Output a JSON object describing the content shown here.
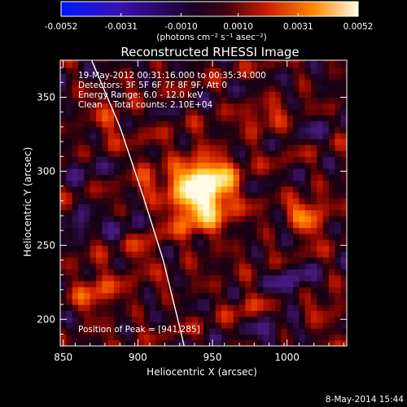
{
  "chart_data": {
    "type": "heatmap",
    "title": "Reconstructed RHESSI Image",
    "xlabel": "Heliocentric X (arcsec)",
    "ylabel": "Heliocentric Y (arcsec)",
    "xlim": [
      848,
      1040
    ],
    "ylim": [
      182,
      375
    ],
    "x_ticks": [
      850,
      900,
      950,
      1000
    ],
    "y_ticks": [
      200,
      250,
      300,
      350
    ],
    "colorbar": {
      "range": [
        -0.0052,
        0.0052
      ],
      "tick_labels": [
        "-0.0052",
        "-0.0031",
        "-0.0010",
        "0.0010",
        "0.0031",
        "0.0052"
      ],
      "tick_values": [
        -0.0052,
        -0.0031,
        -0.001,
        0.001,
        0.0031,
        0.0052
      ],
      "unit_label": "(photons cm⁻² s⁻¹ asec⁻²)"
    },
    "annotations": [
      "19-May-2012 00:31:16.000 to 00:35:34.000",
      "Detectors: 3F 5F 6F 7F 8F 9F, Att 0",
      "Energy Range: 6.0 - 12.0 keV",
      "Clean    Total counts: 2.10E+04"
    ],
    "peak_label": "Position of Peak = [941,285]",
    "peak": {
      "x": 941,
      "y": 285
    },
    "limb_curve": [
      [
        869,
        375
      ],
      [
        888,
        330
      ],
      [
        903,
        285
      ],
      [
        917,
        240
      ],
      [
        928,
        195
      ],
      [
        931,
        182
      ]
    ],
    "blobs": [
      {
        "x": 941,
        "y": 285,
        "sx": 14,
        "sy": 16,
        "amp": 1.0
      },
      {
        "x": 952,
        "y": 292,
        "sx": 10,
        "sy": 10,
        "amp": 0.35
      },
      {
        "x": 1012,
        "y": 272,
        "sx": 8,
        "sy": 7,
        "amp": 0.45
      },
      {
        "x": 1018,
        "y": 262,
        "sx": 6,
        "sy": 6,
        "amp": 0.3
      },
      {
        "x": 872,
        "y": 220,
        "sx": 10,
        "sy": 12,
        "amp": 0.32
      },
      {
        "x": 902,
        "y": 244,
        "sx": 8,
        "sy": 9,
        "amp": 0.25
      },
      {
        "x": 880,
        "y": 335,
        "sx": 9,
        "sy": 8,
        "amp": 0.28
      },
      {
        "x": 905,
        "y": 300,
        "sx": 7,
        "sy": 10,
        "amp": 0.22
      },
      {
        "x": 985,
        "y": 335,
        "sx": 10,
        "sy": 8,
        "amp": 0.25
      },
      {
        "x": 975,
        "y": 210,
        "sx": 9,
        "sy": 8,
        "amp": 0.22
      },
      {
        "x": 1025,
        "y": 205,
        "sx": 8,
        "sy": 8,
        "amp": 0.2
      },
      {
        "x": 860,
        "y": 265,
        "sx": 6,
        "sy": 8,
        "amp": -0.3
      },
      {
        "x": 888,
        "y": 262,
        "sx": 8,
        "sy": 6,
        "amp": -0.25
      },
      {
        "x": 1003,
        "y": 225,
        "sx": 10,
        "sy": 9,
        "amp": -0.28
      },
      {
        "x": 985,
        "y": 195,
        "sx": 10,
        "sy": 8,
        "amp": -0.22
      },
      {
        "x": 865,
        "y": 305,
        "sx": 7,
        "sy": 7,
        "amp": -0.2
      },
      {
        "x": 1020,
        "y": 330,
        "sx": 8,
        "sy": 8,
        "amp": -0.15
      }
    ]
  },
  "footer": {
    "timestamp": "8-May-2014 15:44"
  }
}
